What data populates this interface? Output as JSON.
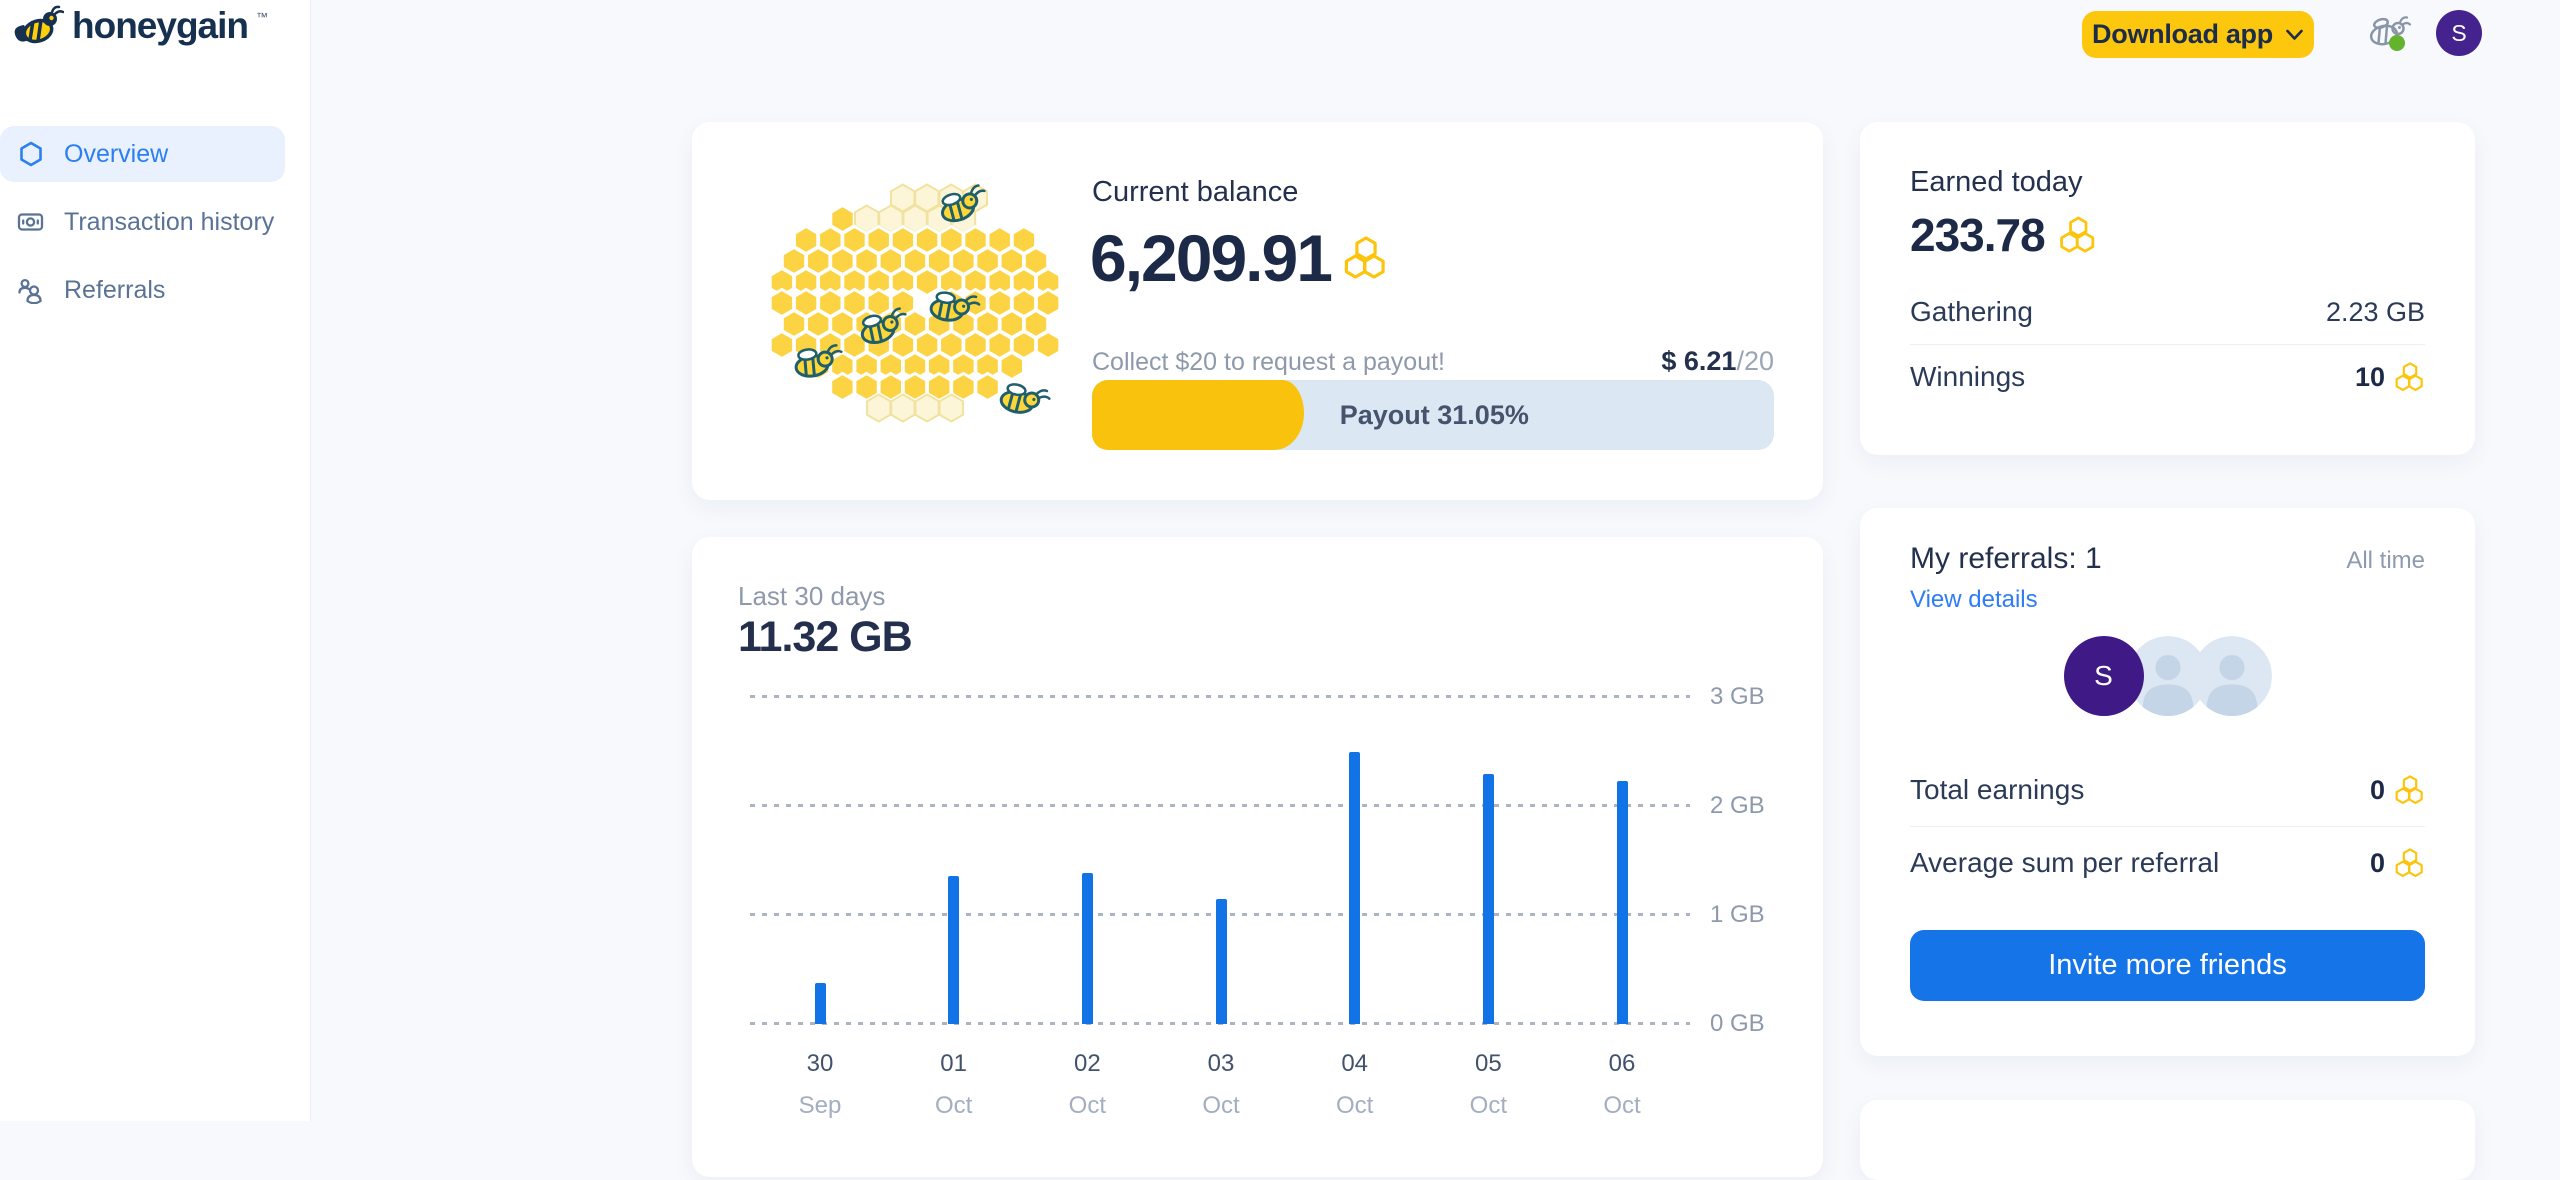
{
  "brand": {
    "name": "honeygain",
    "trademark": "™"
  },
  "header": {
    "download_app_label": "Download app",
    "avatar_initial": "S"
  },
  "sidebar": {
    "items": [
      {
        "label": "Overview",
        "active": true
      },
      {
        "label": "Transaction history",
        "active": false
      },
      {
        "label": "Referrals",
        "active": false
      }
    ]
  },
  "balance_card": {
    "title": "Current balance",
    "amount": "6,209.91",
    "collect_message": "Collect $20 to request a payout!",
    "progress_value": "$ 6.21",
    "progress_max": "/20",
    "payout_label": "Payout 31.05%",
    "payout_percent": 31.05
  },
  "traffic_card": {
    "period_label": "Last 30 days",
    "total_label": "11.32 GB"
  },
  "chart_data": {
    "type": "bar",
    "title": "Last 30 days traffic",
    "categories_day": [
      "30",
      "01",
      "02",
      "03",
      "04",
      "05",
      "06"
    ],
    "categories_month": [
      "Sep",
      "Oct",
      "Oct",
      "Oct",
      "Oct",
      "Oct",
      "Oct"
    ],
    "values_gb": [
      0.38,
      1.36,
      1.39,
      1.15,
      2.5,
      2.29,
      2.23
    ],
    "unit": "GB",
    "yticks": [
      "0 GB",
      "1 GB",
      "2 GB",
      "3 GB"
    ],
    "ylim": [
      0,
      3
    ],
    "grid": "dotted horizontal",
    "legend": "none",
    "bar_color": "#1273e6"
  },
  "earned_card": {
    "title": "Earned today",
    "amount": "233.78",
    "rows": [
      {
        "label": "Gathering",
        "value": "2.23 GB"
      },
      {
        "label": "Winnings",
        "value": "10"
      }
    ]
  },
  "referrals_card": {
    "title": "My referrals: 1",
    "filter_label": "All time",
    "details_link": "View details",
    "avatar_initial": "S",
    "rows": [
      {
        "label": "Total earnings",
        "value": "0"
      },
      {
        "label": "Average sum per referral",
        "value": "0"
      }
    ],
    "invite_button": "Invite more friends"
  },
  "colors": {
    "brand_yellow": "#fdc70d",
    "accent_blue": "#1574e8",
    "bar_blue": "#1273e6",
    "navy_text": "#1c2947",
    "muted_text": "#8e99ab",
    "avatar_purple": "#44238e",
    "online_green": "#63b32e",
    "progress_track": "#dbe7f2",
    "sidebar_active_bg": "#e8f1fd"
  }
}
